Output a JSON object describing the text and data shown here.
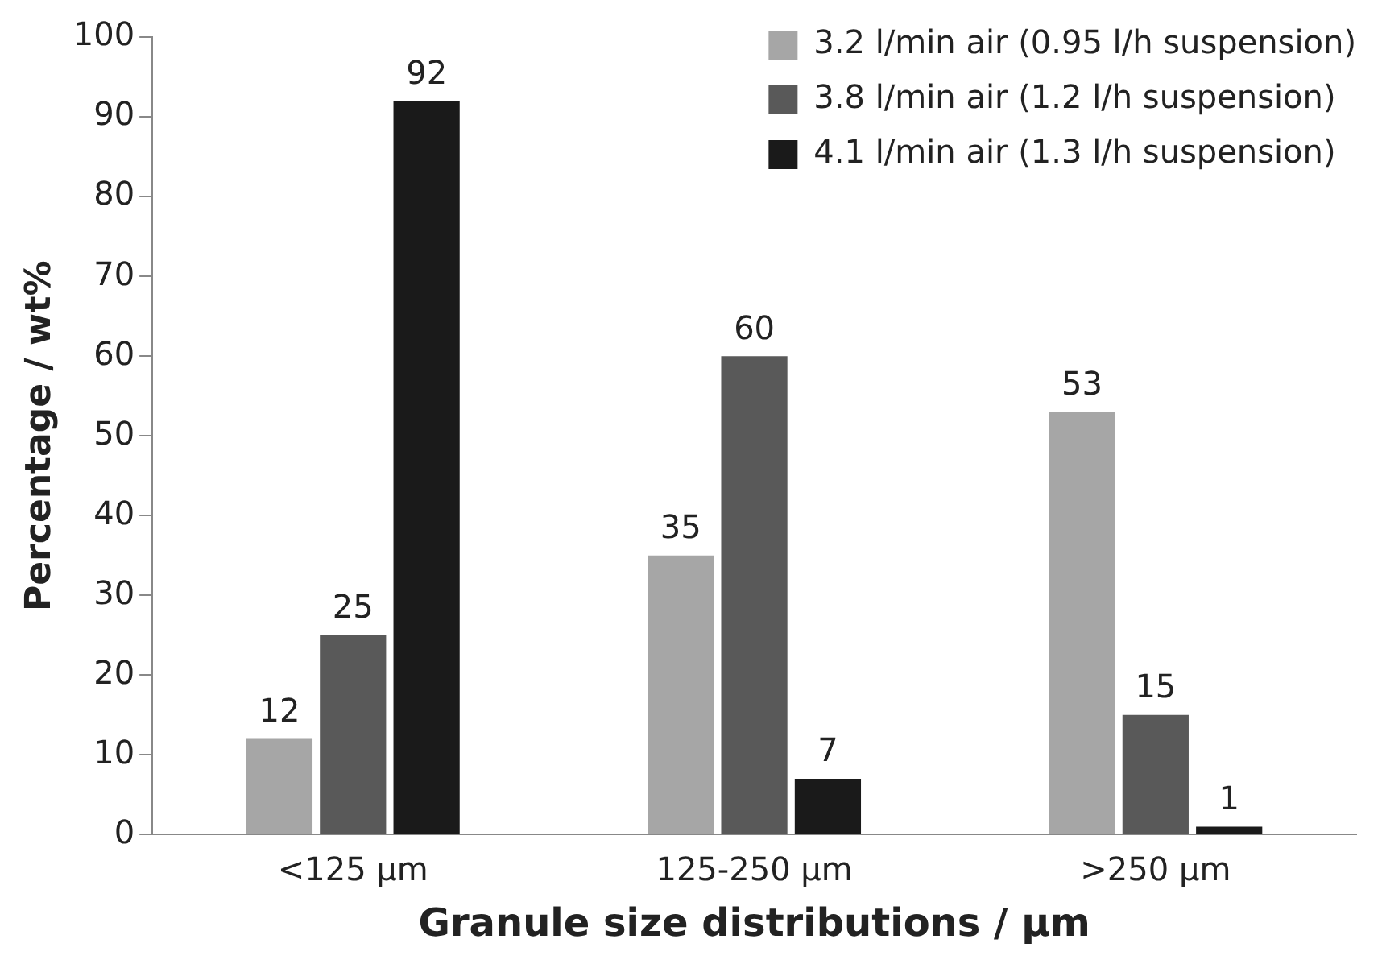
{
  "chart_data": {
    "type": "bar",
    "xlabel": "Granule size distributions / µm",
    "ylabel": "Percentage / wt%",
    "categories": [
      "<125 µm",
      "125-250 µm",
      ">250 µm"
    ],
    "series": [
      {
        "name": "3.2 l/min air (0.95 l/h suspension)",
        "color": "#a6a6a6",
        "values": [
          12,
          35,
          53
        ]
      },
      {
        "name": "3.8 l/min air (1.2 l/h suspension)",
        "color": "#595959",
        "values": [
          25,
          60,
          15
        ]
      },
      {
        "name": "4.1 l/min air (1.3 l/h suspension)",
        "color": "#1a1a1a",
        "values": [
          92,
          7,
          1
        ]
      }
    ],
    "ylim": [
      0,
      100
    ],
    "yticks": [
      0,
      10,
      20,
      30,
      40,
      50,
      60,
      70,
      80,
      90,
      100
    ],
    "grid": false,
    "legend": "top right",
    "data_labels": true
  }
}
